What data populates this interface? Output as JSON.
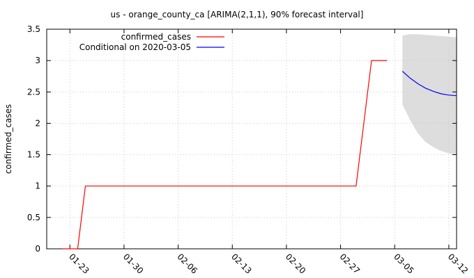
{
  "chart_data": {
    "type": "line",
    "title": "us - orange_county_ca [ARIMA(2,1,1), 90% forecast interval]",
    "xlabel": "",
    "ylabel": "confirmed_cases",
    "x_range": [
      "2020-01-20",
      "2020-03-13"
    ],
    "ylim": [
      0,
      3.5
    ],
    "y_ticks": [
      0,
      0.5,
      1,
      1.5,
      2,
      2.5,
      3,
      3.5
    ],
    "y_tick_labels": [
      "0",
      "0.5",
      "1",
      "1.5",
      "2",
      "2.5",
      "3",
      "3.5"
    ],
    "x_tick_labels": [
      "01-23",
      "01-30",
      "02-06",
      "02-13",
      "02-20",
      "02-27",
      "03-05",
      "03-12"
    ],
    "x_ticks": [
      "2020-01-23",
      "2020-01-30",
      "2020-02-06",
      "2020-02-13",
      "2020-02-20",
      "2020-02-27",
      "2020-03-05",
      "2020-03-12"
    ],
    "grid": true,
    "legend_position": "top-left",
    "series": [
      {
        "name": "confirmed_cases",
        "color": "#ff0000",
        "x": [
          "2020-01-22",
          "2020-01-23",
          "2020-01-24",
          "2020-01-25",
          "2020-02-29",
          "2020-03-02",
          "2020-03-03",
          "2020-03-04"
        ],
        "y": [
          0,
          0,
          0,
          1,
          1,
          3,
          3,
          3
        ]
      },
      {
        "name": "Conditional on 2020-03-05",
        "color": "#0000ff",
        "x": [
          "2020-03-06",
          "2020-03-07",
          "2020-03-08",
          "2020-03-09",
          "2020-03-10",
          "2020-03-11",
          "2020-03-12",
          "2020-03-13"
        ],
        "y": [
          2.83,
          2.72,
          2.63,
          2.56,
          2.51,
          2.47,
          2.45,
          2.44
        ]
      }
    ],
    "forecast_interval": {
      "color": "#dddddd",
      "x": [
        "2020-03-06",
        "2020-03-07",
        "2020-03-08",
        "2020-03-09",
        "2020-03-10",
        "2020-03-11",
        "2020-03-12",
        "2020-03-13"
      ],
      "upper": [
        3.4,
        3.42,
        3.42,
        3.41,
        3.4,
        3.39,
        3.38,
        3.37
      ],
      "lower": [
        2.3,
        2.05,
        1.84,
        1.7,
        1.62,
        1.56,
        1.52,
        1.5
      ]
    }
  }
}
